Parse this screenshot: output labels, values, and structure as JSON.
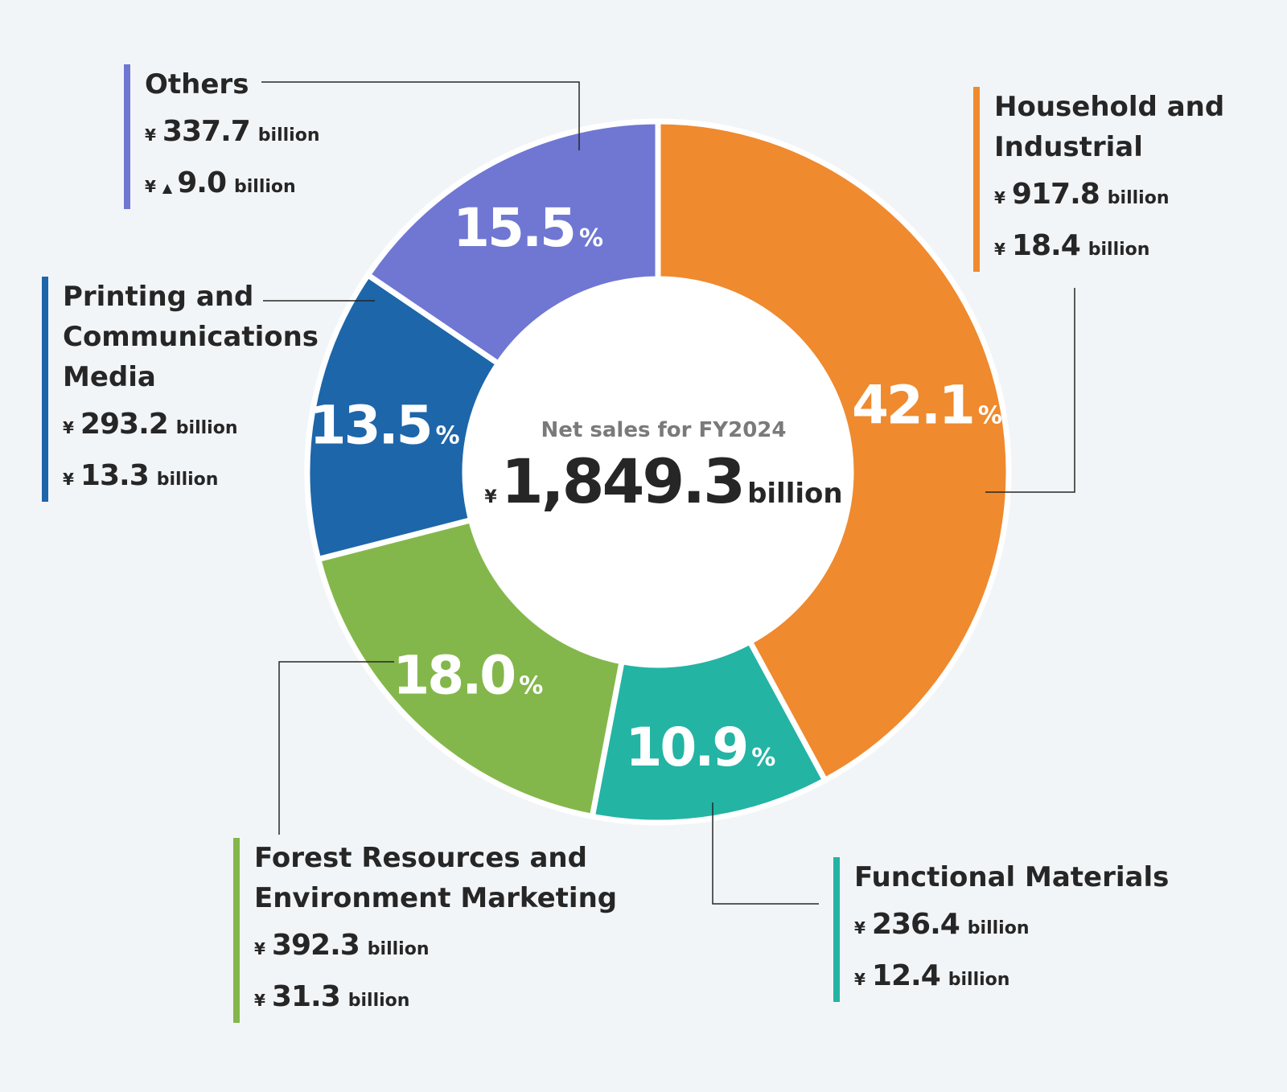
{
  "colors": {
    "background": "#f2f5f8",
    "text": "#262626",
    "muted": "#7a7a7a"
  },
  "center": {
    "title": "Net sales for FY2024",
    "currency": "¥",
    "value": "1,849.3",
    "unit": "billion"
  },
  "chart_data": {
    "type": "pie",
    "variant": "donut",
    "total_label": "Net sales for FY2024",
    "total": 1849.3,
    "unit": "billion",
    "segments": [
      {
        "name": "Household and Industrial",
        "percent": 42.1,
        "percent_label": "42.1",
        "sales": "917.8",
        "profit": "18.4",
        "color": "#ef8a2e"
      },
      {
        "name": "Functional Materials",
        "percent": 10.9,
        "percent_label": "10.9",
        "sales": "236.4",
        "profit": "12.4",
        "color": "#23b4a4"
      },
      {
        "name": "Forest Resources and Environment Marketing",
        "percent": 18.0,
        "percent_label": "18.0",
        "sales": "392.3",
        "profit": "31.3",
        "color": "#84b74b"
      },
      {
        "name": "Printing and Communications Media",
        "percent": 13.5,
        "percent_label": "13.5",
        "sales": "293.2",
        "profit": "13.3",
        "color": "#1d66aa"
      },
      {
        "name": "Others",
        "percent": 15.5,
        "percent_label": "15.5",
        "sales": "337.7",
        "profit": "9.0",
        "profit_negative": true,
        "color": "#6f77d3"
      }
    ]
  },
  "labels": {
    "household": {
      "name_lines": [
        "Household and",
        "Industrial"
      ],
      "yen": "¥",
      "sales": "917.8",
      "profit": "18.4",
      "unit": "billion",
      "color": "#ef8a2e"
    },
    "functional": {
      "name_lines": [
        "Functional Materials"
      ],
      "yen": "¥",
      "sales": "236.4",
      "profit": "12.4",
      "unit": "billion",
      "color": "#23b4a4"
    },
    "forest": {
      "name_lines": [
        "Forest Resources and",
        "Environment Marketing"
      ],
      "yen": "¥",
      "sales": "392.3",
      "profit": "31.3",
      "unit": "billion",
      "color": "#84b74b"
    },
    "printing": {
      "name_lines": [
        "Printing and",
        "Communications",
        "Media"
      ],
      "yen": "¥",
      "sales": "293.2",
      "profit": "13.3",
      "unit": "billion",
      "color": "#1d66aa"
    },
    "others": {
      "name_lines": [
        "Others"
      ],
      "yen": "¥",
      "triangle": "▲",
      "sales": "337.7",
      "profit": "9.0",
      "unit": "billion",
      "color": "#6f77d3"
    }
  },
  "percent_sign": "%"
}
